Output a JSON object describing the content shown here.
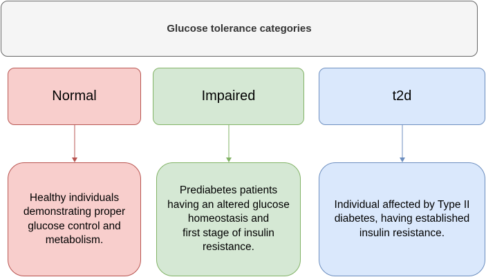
{
  "title": "Glucose tolerance categories",
  "categories": [
    {
      "label": "Normal",
      "description": "Healthy individuals\ndemonstrating proper\nglucose control and\nmetabolism.",
      "fill": "#f8cecc",
      "stroke": "#b85450"
    },
    {
      "label": "Impaired",
      "description": "Prediabetes patients\nhaving an altered glucose\nhomeostasis and\nfirst stage of insulin\nresistance.",
      "fill": "#d5e8d4",
      "stroke": "#82b366"
    },
    {
      "label": "t2d",
      "description": "Individual affected by Type II\ndiabetes, having  established\ninsulin resistance.",
      "fill": "#dae8fc",
      "stroke": "#6c8ebf"
    }
  ]
}
